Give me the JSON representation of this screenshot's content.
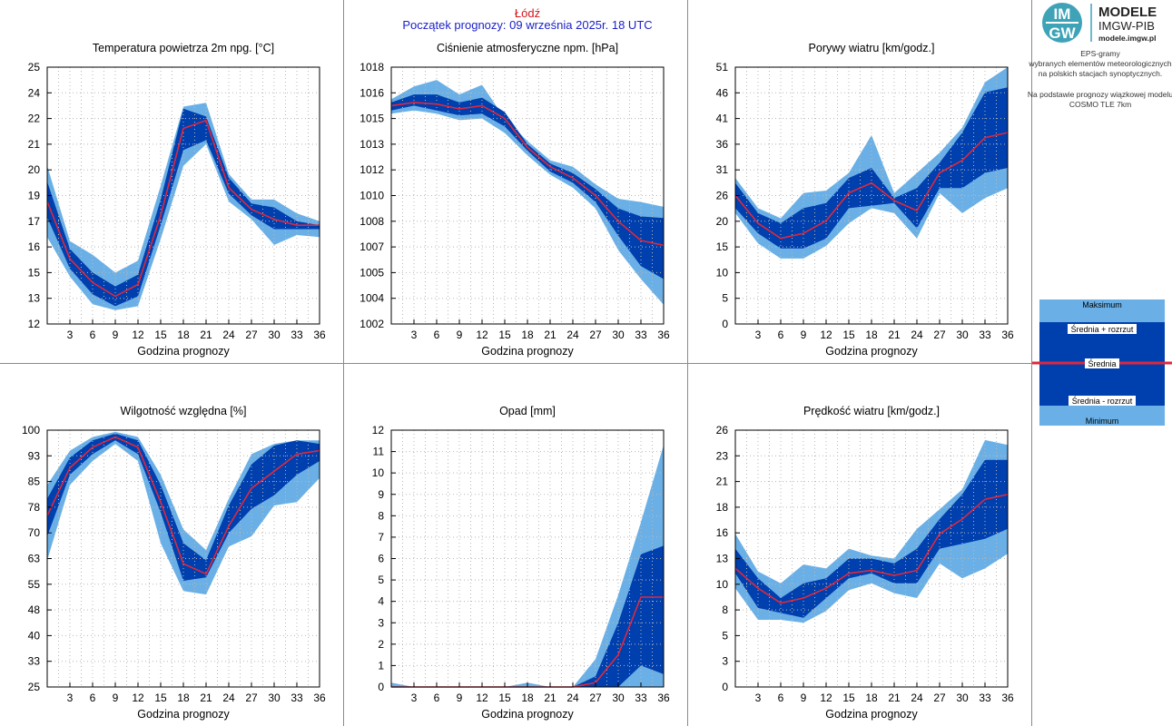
{
  "header": {
    "station": "Łódź",
    "forecast_start": "Początek prognozy: 09 września 2025r. 18 UTC"
  },
  "logo": {
    "mark_top": "IM",
    "mark_bottom": "GW",
    "line1": "MODELE",
    "line2": "IMGW-PIB",
    "url": "modele.imgw.pl"
  },
  "info": {
    "line1": "EPS-gramy",
    "line2": "wybranych elementów meteorologicznych",
    "line3": "na polskich stacjach  synoptycznych.",
    "line4": "Na podstawie prognozy wiązkowej modelu",
    "line5": "COSMO TLE 7km"
  },
  "legend": {
    "max": "Maksimum",
    "mean_plus": "Średnia + rozrzut",
    "mean": "Średnia",
    "mean_minus": "Średnia - rozrzut",
    "min": "Minimum"
  },
  "colors": {
    "light_band": "#6ab0e6",
    "dark_band": "#003fae",
    "mean_line": "#e0283c",
    "header_station": "#d4141c",
    "header_date": "#1c22c8"
  },
  "chart_data": [
    {
      "type": "area",
      "title": "Temperatura powietrza 2m npg. [°C]",
      "xlabel": "Godzina prognozy",
      "x": [
        0,
        3,
        6,
        9,
        12,
        15,
        18,
        21,
        24,
        27,
        30,
        33,
        36
      ],
      "xticks": [
        "3",
        "6",
        "9",
        "12",
        "15",
        "18",
        "21",
        "24",
        "27",
        "30",
        "33",
        "36"
      ],
      "ylim": [
        12,
        25
      ],
      "yticks": [
        "12",
        "13",
        "15",
        "16",
        "17",
        "19",
        "20",
        "21",
        "22",
        "24",
        "25"
      ],
      "max": [
        20.0,
        16.2,
        15.5,
        14.6,
        15.2,
        19.0,
        23.0,
        23.2,
        19.6,
        18.3,
        18.3,
        17.6,
        17.2
      ],
      "mean_plus": [
        19.2,
        15.8,
        14.6,
        13.9,
        14.5,
        18.3,
        22.9,
        22.5,
        19.4,
        18.1,
        17.9,
        17.2,
        17.0
      ],
      "mean": [
        18.2,
        15.3,
        14.1,
        13.4,
        14.0,
        17.5,
        21.9,
        22.3,
        18.9,
        17.8,
        17.3,
        17.0,
        17.0
      ],
      "mean_minus": [
        17.4,
        14.8,
        13.5,
        12.9,
        13.4,
        17.0,
        20.8,
        21.3,
        18.6,
        17.5,
        16.8,
        16.8,
        16.8
      ],
      "min": [
        16.4,
        14.4,
        13.0,
        12.7,
        12.9,
        16.3,
        20.0,
        21.1,
        18.2,
        17.3,
        16.0,
        16.5,
        16.4
      ]
    },
    {
      "type": "area",
      "title": "Ciśnienie atmosferyczne npm. [hPa]",
      "xlabel": "Godzina prognozy",
      "x": [
        0,
        3,
        6,
        9,
        12,
        15,
        18,
        21,
        24,
        27,
        30,
        33,
        36
      ],
      "xticks": [
        "3",
        "6",
        "9",
        "12",
        "15",
        "18",
        "21",
        "24",
        "27",
        "30",
        "33",
        "36"
      ],
      "ylim": [
        1002,
        1018
      ],
      "yticks": [
        "1002",
        "1004",
        "1005",
        "1007",
        "1008",
        "1010",
        "1012",
        "1013",
        "1015",
        "1016",
        "1018"
      ],
      "max": [
        1016.0,
        1016.8,
        1017.2,
        1016.3,
        1016.9,
        1014.8,
        1013.4,
        1012.2,
        1011.8,
        1010.7,
        1009.8,
        1009.6,
        1009.3
      ],
      "mean_plus": [
        1015.8,
        1016.3,
        1016.3,
        1015.8,
        1016.1,
        1015.2,
        1013.2,
        1012.0,
        1011.4,
        1010.4,
        1009.2,
        1008.7,
        1008.6
      ],
      "mean": [
        1015.6,
        1015.8,
        1015.7,
        1015.4,
        1015.6,
        1014.8,
        1013.0,
        1011.8,
        1011.1,
        1010.0,
        1008.4,
        1007.2,
        1006.9
      ],
      "mean_minus": [
        1015.3,
        1015.6,
        1015.3,
        1015.0,
        1015.1,
        1014.3,
        1012.8,
        1011.5,
        1010.8,
        1009.6,
        1007.5,
        1005.6,
        1004.8
      ],
      "min": [
        1015.1,
        1015.3,
        1015.1,
        1014.7,
        1014.8,
        1013.9,
        1012.5,
        1011.3,
        1010.5,
        1009.2,
        1006.6,
        1004.8,
        1003.2
      ]
    },
    {
      "type": "area",
      "title": "Porywy wiatru [km/godz.]",
      "xlabel": "Godzina prognozy",
      "x": [
        0,
        3,
        6,
        9,
        12,
        15,
        18,
        21,
        24,
        27,
        30,
        33,
        36
      ],
      "xticks": [
        "3",
        "6",
        "9",
        "12",
        "15",
        "18",
        "21",
        "24",
        "27",
        "30",
        "33",
        "36"
      ],
      "ylim": [
        0,
        51
      ],
      "yticks": [
        "0",
        "5",
        "10",
        "15",
        "20",
        "26",
        "31",
        "36",
        "41",
        "46",
        "51"
      ],
      "max": [
        29.0,
        23.0,
        21.0,
        26.0,
        26.5,
        30.0,
        37.5,
        26.0,
        30.0,
        34.0,
        39.0,
        48.0,
        51.0
      ],
      "mean_plus": [
        28.0,
        22.0,
        20.0,
        23.0,
        24.0,
        29.0,
        31.0,
        25.0,
        27.0,
        32.0,
        38.0,
        46.0,
        47.0
      ],
      "mean": [
        25.5,
        20.0,
        17.0,
        18.0,
        20.5,
        26.0,
        28.0,
        24.5,
        22.5,
        30.0,
        32.5,
        37.0,
        38.0
      ],
      "mean_minus": [
        23.0,
        18.0,
        15.0,
        15.0,
        17.0,
        23.0,
        23.5,
        24.0,
        19.0,
        27.0,
        27.0,
        30.0,
        31.0
      ],
      "min": [
        22.0,
        16.0,
        13.0,
        13.0,
        15.5,
        20.0,
        23.0,
        22.0,
        17.0,
        26.0,
        22.0,
        25.0,
        27.0
      ]
    },
    {
      "type": "area",
      "title": "Wilgotność względna [%]",
      "xlabel": "Godzina prognozy",
      "x": [
        0,
        3,
        6,
        9,
        12,
        15,
        18,
        21,
        24,
        27,
        30,
        33,
        36
      ],
      "xticks": [
        "3",
        "6",
        "9",
        "12",
        "15",
        "18",
        "21",
        "24",
        "27",
        "30",
        "33",
        "36"
      ],
      "ylim": [
        25,
        100
      ],
      "yticks": [
        "25",
        "33",
        "40",
        "48",
        "55",
        "63",
        "70",
        "78",
        "85",
        "93",
        "100"
      ],
      "max": [
        84.0,
        94.0,
        98.0,
        99.5,
        98.0,
        87.0,
        71.0,
        65.0,
        80.0,
        93.0,
        96.0,
        97.0,
        97.0
      ],
      "mean_plus": [
        80.0,
        92.0,
        97.0,
        99.0,
        97.0,
        84.0,
        67.0,
        62.0,
        78.0,
        90.0,
        95.5,
        97.0,
        96.0
      ],
      "mean": [
        75.0,
        89.0,
        95.0,
        98.0,
        95.0,
        79.0,
        61.0,
        58.0,
        72.0,
        83.0,
        88.0,
        93.0,
        94.0
      ],
      "mean_minus": [
        69.0,
        87.0,
        93.0,
        97.0,
        93.0,
        76.0,
        56.0,
        57.0,
        70.0,
        77.0,
        81.0,
        87.0,
        91.0
      ],
      "min": [
        62.0,
        84.0,
        91.0,
        96.0,
        91.0,
        67.0,
        53.0,
        52.0,
        66.0,
        69.0,
        78.0,
        79.0,
        86.0
      ]
    },
    {
      "type": "area",
      "title": "Opad [mm]",
      "xlabel": "Godzina prognozy",
      "x": [
        0,
        3,
        6,
        9,
        12,
        15,
        18,
        21,
        24,
        27,
        30,
        33,
        36
      ],
      "xticks": [
        "3",
        "6",
        "9",
        "12",
        "15",
        "18",
        "21",
        "24",
        "27",
        "30",
        "33",
        "36"
      ],
      "ylim": [
        0,
        12
      ],
      "yticks": [
        "0",
        "1",
        "2",
        "3",
        "4",
        "5",
        "6",
        "7",
        "8",
        "9",
        "10",
        "11",
        "12"
      ],
      "max": [
        0.2,
        0.0,
        0.0,
        0.0,
        0.0,
        0.0,
        0.2,
        0.0,
        0.0,
        1.3,
        4.3,
        7.7,
        11.3
      ],
      "mean_plus": [
        0.0,
        0.0,
        0.0,
        0.0,
        0.0,
        0.0,
        0.0,
        0.0,
        0.0,
        0.5,
        3.0,
        6.2,
        6.6
      ],
      "mean": [
        0.0,
        0.0,
        0.0,
        0.0,
        0.0,
        0.0,
        0.0,
        0.0,
        0.0,
        0.2,
        1.5,
        4.2,
        4.2
      ],
      "mean_minus": [
        0.0,
        0.0,
        0.0,
        0.0,
        0.0,
        0.0,
        0.0,
        0.0,
        0.0,
        0.0,
        0.0,
        1.0,
        0.6
      ],
      "min": [
        0.0,
        0.0,
        0.0,
        0.0,
        0.0,
        0.0,
        0.0,
        0.0,
        0.0,
        0.0,
        0.0,
        0.0,
        0.0
      ]
    },
    {
      "type": "area",
      "title": "Prędkość wiatru [km/godz.]",
      "xlabel": "Godzina prognozy",
      "x": [
        0,
        3,
        6,
        9,
        12,
        15,
        18,
        21,
        24,
        27,
        30,
        33,
        36
      ],
      "xticks": [
        "3",
        "6",
        "9",
        "12",
        "15",
        "18",
        "21",
        "24",
        "27",
        "30",
        "33",
        "36"
      ],
      "ylim": [
        0,
        26
      ],
      "yticks": [
        "0",
        "3",
        "5",
        "8",
        "10",
        "13",
        "16",
        "18",
        "21",
        "23",
        "26"
      ],
      "max": [
        15.5,
        11.7,
        10.5,
        12.4,
        12.0,
        14.0,
        13.3,
        13.0,
        16.0,
        18.0,
        20.0,
        25.0,
        24.5
      ],
      "mean_plus": [
        14.0,
        11.0,
        9.0,
        10.5,
        11.0,
        13.0,
        13.0,
        12.5,
        14.0,
        17.0,
        19.5,
        23.0,
        23.0
      ],
      "mean": [
        12.0,
        10.0,
        8.5,
        9.0,
        10.0,
        11.5,
        11.8,
        11.3,
        11.8,
        15.5,
        17.0,
        19.0,
        19.5
      ],
      "mean_minus": [
        11.5,
        8.0,
        7.5,
        7.0,
        9.0,
        11.0,
        11.5,
        10.5,
        10.5,
        14.0,
        14.5,
        15.0,
        16.0
      ],
      "min": [
        10.0,
        6.8,
        6.8,
        6.5,
        7.7,
        9.8,
        10.5,
        9.5,
        9.0,
        12.5,
        11.0,
        12.0,
        13.5
      ]
    }
  ]
}
